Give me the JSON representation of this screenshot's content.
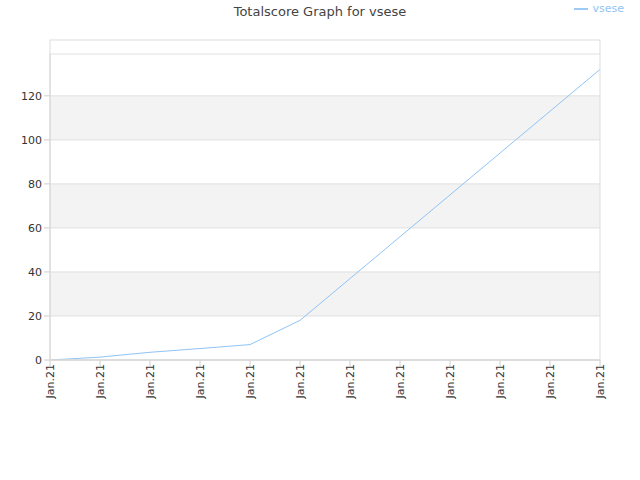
{
  "chart_data": {
    "type": "line",
    "title": "Totalscore Graph for vsese",
    "categories": [
      "Jan.21",
      "Jan.21",
      "Jan.21",
      "Jan.21",
      "Jan.21",
      "Jan.21",
      "Jan.21",
      "Jan.21",
      "Jan.21",
      "Jan.21",
      "Jan.21",
      "Jan.21"
    ],
    "series": [
      {
        "name": "vsese",
        "color": "#90c4f4",
        "values": [
          0,
          1.3,
          3.5,
          5.2,
          7,
          18,
          37,
          56,
          75,
          94,
          113,
          132
        ]
      }
    ],
    "ylim": [
      0,
      139
    ],
    "yticks": [
      0,
      20,
      40,
      60,
      80,
      100,
      120
    ],
    "grid": true,
    "legend": "upper right"
  }
}
